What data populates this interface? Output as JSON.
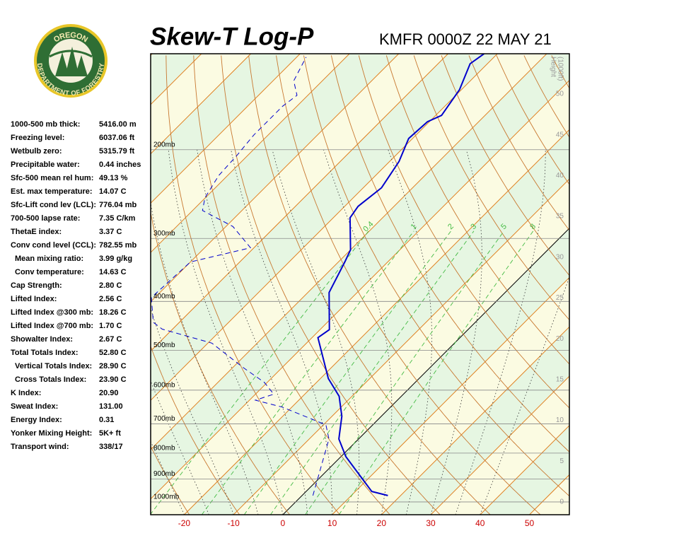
{
  "header": {
    "title": "Skew-T Log-P",
    "station": "KMFR 0000Z 22 MAY 21"
  },
  "logo": {
    "top": "OREGON",
    "bottom": "DEPARTMENT OF FORESTRY"
  },
  "indices": [
    [
      "1000-500 mb thick:",
      "5416.00 m"
    ],
    [
      "Freezing level:",
      "6037.06 ft"
    ],
    [
      "Wetbulb zero:",
      "5315.79 ft"
    ],
    [
      "Precipitable water:",
      "0.44 inches"
    ],
    [
      "Sfc-500 mean rel hum:",
      "49.13 %"
    ],
    [
      "Est. max temperature:",
      "14.07 C"
    ],
    [
      "Sfc-Lift cond lev (LCL):",
      "776.04 mb"
    ],
    [
      "700-500 lapse rate:",
      "7.35 C/km"
    ],
    [
      "ThetaE index:",
      "3.37 C"
    ],
    [
      "Conv cond level (CCL):",
      "782.55 mb"
    ],
    [
      "Mean mixing ratio:",
      "3.99 g/kg"
    ],
    [
      "Conv temperature:",
      "14.63 C"
    ],
    [
      "Cap Strength:",
      "2.80 C"
    ],
    [
      "Lifted Index:",
      "2.56 C"
    ],
    [
      "Lifted Index @300 mb:",
      "18.26 C"
    ],
    [
      "Lifted Index @700 mb:",
      "1.70 C"
    ],
    [
      "Showalter Index:",
      "2.67 C"
    ],
    [
      "Total Totals Index:",
      "52.80 C"
    ],
    [
      "Vertical Totals Index:",
      "28.90 C"
    ],
    [
      "Cross Totals Index:",
      "23.90 C"
    ],
    [
      "K Index:",
      "20.90"
    ],
    [
      "Sweat Index:",
      "131.00"
    ],
    [
      "Energy Index:",
      "0.31"
    ],
    [
      "Yonker Mixing Height:",
      "5K+ ft"
    ],
    [
      "Transport wind:",
      "338/17"
    ]
  ],
  "chart_data": {
    "type": "skew-t",
    "ylim": [
      1060,
      129
    ],
    "yscale": "log",
    "yticks": [
      {
        "value": 1000,
        "label": "1000mb"
      },
      {
        "value": 900,
        "label": "900mb"
      },
      {
        "value": 800,
        "label": "800mb"
      },
      {
        "value": 700,
        "label": "700mb"
      },
      {
        "value": 600,
        "label": "600mb"
      },
      {
        "value": 500,
        "label": "500mb"
      },
      {
        "value": 400,
        "label": "400mb"
      },
      {
        "value": 300,
        "label": "300mb"
      },
      {
        "value": 200,
        "label": "200mb"
      }
    ],
    "xlim": [
      -26.8,
      58.1
    ],
    "xticks": [
      -20,
      -10,
      0,
      10,
      20,
      30,
      40,
      50
    ],
    "y2label": [
      "Height",
      "(1000ft)"
    ],
    "y2lim": [
      -1.56,
      54.94
    ],
    "y2ticks": [
      0,
      5,
      10,
      15,
      20,
      25,
      30,
      35,
      40,
      45,
      50
    ],
    "mixing_ratio": {
      "color": "#44bb44",
      "values": [
        0.4,
        1,
        2,
        3,
        5,
        8
      ]
    },
    "series": [
      {
        "color": "#0000cc",
        "dashed": false,
        "temperature": [
          17.4,
          13.3,
          1.0,
          -4.0,
          -8.0,
          -12.6,
          -18.4,
          -28.8,
          -28.1,
          -35.7,
          -38.7,
          -40.0,
          -46.6,
          -47.3,
          -46.3,
          -48.1,
          -50.8,
          -50.4,
          -48.8,
          -50.4,
          -53.5,
          -52.7
        ],
        "pressure": [
          971,
          953,
          813,
          750,
          676,
          617,
          569,
          472,
          455,
          384,
          334,
          316,
          273,
          259,
          238,
          211,
          190,
          176,
          171,
          152,
          135,
          129
        ]
      },
      {
        "color": "#0000cc",
        "dashed": true,
        "temperature": [
          2.2,
          -6.0,
          -9.5,
          -22.0,
          -28.8,
          -26.3,
          -30.6,
          -37.7,
          -49.2,
          -62.1,
          -65.3,
          -70.7,
          -70.0,
          -60.7,
          -68.6,
          -78.0,
          -80.1,
          -81.8,
          -82.2,
          -82.9,
          -82.9,
          -82.2,
          -85.8,
          -88.1
        ],
        "pressure": [
          971,
          750,
          703,
          648,
          628,
          611,
          579,
          542,
          484,
          454,
          440,
          393,
          334,
          313,
          284,
          264,
          249,
          225,
          205,
          187,
          164,
          156,
          146,
          131
        ]
      }
    ]
  }
}
